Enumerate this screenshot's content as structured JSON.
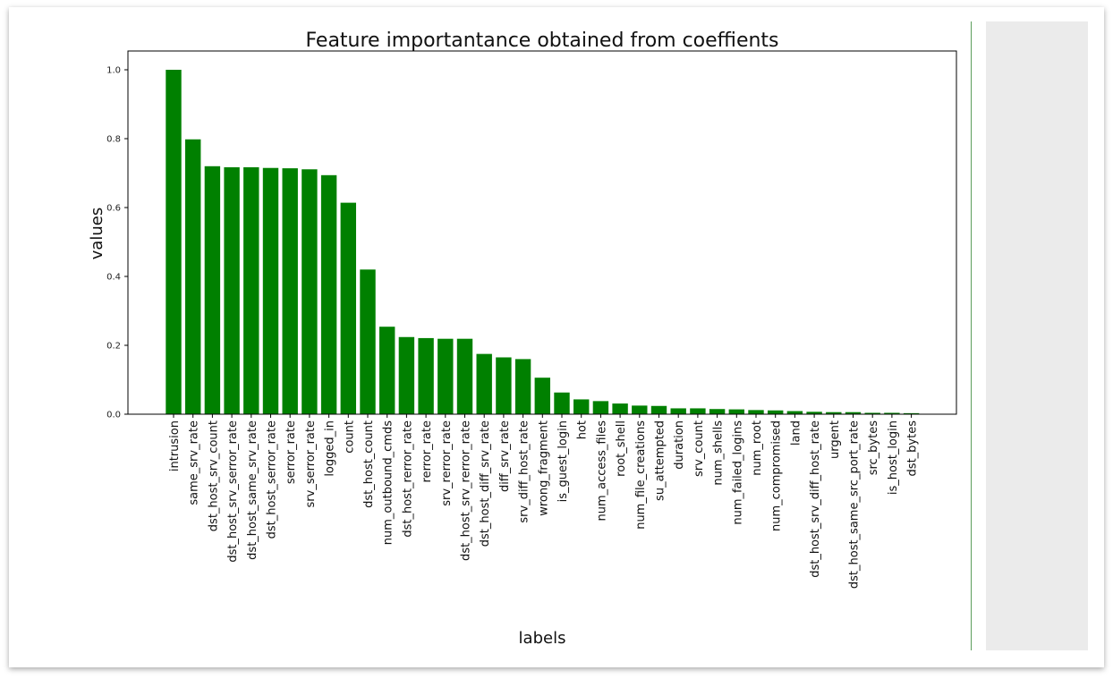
{
  "colors": {
    "bar": "#008000",
    "axis": "#000000",
    "divider": "#5c9e5c",
    "side_panel": "#ebebeb"
  },
  "chart_data": {
    "type": "bar",
    "title": "Feature importantance obtained from coeffients",
    "xlabel": "labels",
    "ylabel": "values",
    "ylim": [
      0,
      1.05
    ],
    "yticks": [
      "0.0",
      "0.2",
      "0.4",
      "0.6",
      "0.8",
      "1.0"
    ],
    "grid": false,
    "categories": [
      "intrusion",
      "same_srv_rate",
      "dst_host_srv_count",
      "dst_host_srv_serror_rate",
      "dst_host_same_srv_rate",
      "dst_host_serror_rate",
      "serror_rate",
      "srv_serror_rate",
      "logged_in",
      "count",
      "dst_host_count",
      "num_outbound_cmds",
      "dst_host_rerror_rate",
      "rerror_rate",
      "srv_rerror_rate",
      "dst_host_srv_rerror_rate",
      "dst_host_diff_srv_rate",
      "diff_srv_rate",
      "srv_diff_host_rate",
      "wrong_fragment",
      "is_guest_login",
      "hot",
      "num_access_files",
      "root_shell",
      "num_file_creations",
      "su_attempted",
      "duration",
      "srv_count",
      "num_shells",
      "num_failed_logins",
      "num_root",
      "num_compromised",
      "land",
      "dst_host_srv_diff_host_rate",
      "urgent",
      "dst_host_same_src_port_rate",
      "src_bytes",
      "is_host_login",
      "dst_bytes"
    ],
    "values": [
      1.0,
      0.798,
      0.72,
      0.717,
      0.717,
      0.715,
      0.714,
      0.711,
      0.694,
      0.614,
      0.42,
      0.254,
      0.224,
      0.221,
      0.219,
      0.219,
      0.175,
      0.165,
      0.16,
      0.106,
      0.063,
      0.043,
      0.038,
      0.031,
      0.025,
      0.024,
      0.017,
      0.017,
      0.015,
      0.014,
      0.012,
      0.011,
      0.009,
      0.007,
      0.006,
      0.006,
      0.004,
      0.004,
      0.003
    ]
  }
}
